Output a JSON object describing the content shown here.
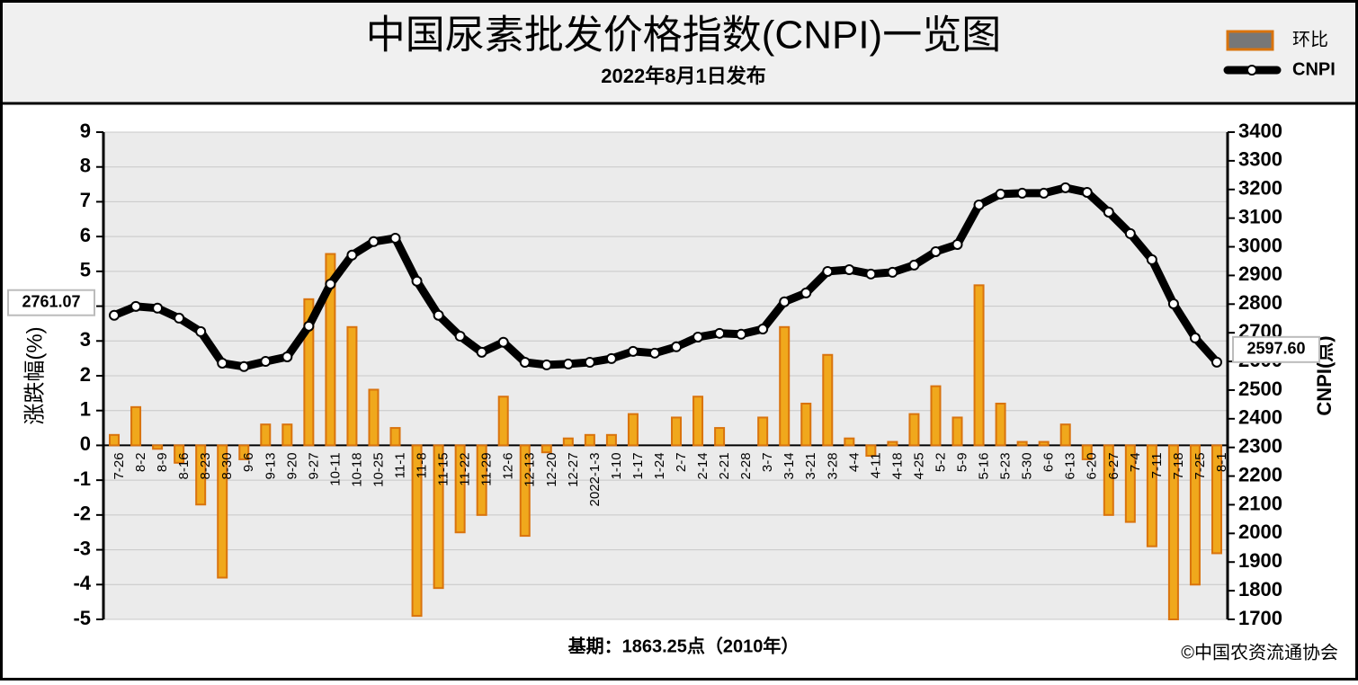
{
  "chart_data": {
    "type": "bar-line",
    "title": "中国尿素批发价格指数(CNPI)一览图",
    "subtitle": "2022年8月1日发布",
    "ylabel": "涨跌幅(%)",
    "y2label": "CNPI(点)",
    "note": "基期：1863.25点（2010年）",
    "source": "©中国农资流通协会",
    "categories": [
      "7-26",
      "8-2",
      "8-9",
      "8-16",
      "8-23",
      "8-30",
      "9-6",
      "9-13",
      "9-20",
      "9-27",
      "10-11",
      "10-18",
      "10-25",
      "11-1",
      "11-8",
      "11-15",
      "11-22",
      "11-29",
      "12-6",
      "12-13",
      "12-20",
      "12-27",
      "2022-1-3",
      "1-10",
      "1-17",
      "1-24",
      "2-7",
      "2-14",
      "2-21",
      "2-28",
      "3-7",
      "3-14",
      "3-21",
      "3-28",
      "4-4",
      "4-11",
      "4-18",
      "4-25",
      "5-2",
      "5-9",
      "5-16",
      "5-23",
      "5-30",
      "6-6",
      "6-13",
      "6-20",
      "6-27",
      "7-4",
      "7-11",
      "7-18",
      "7-25",
      "8-1"
    ],
    "series": [
      {
        "name": "环比",
        "type": "bar",
        "color": "#f0a81c",
        "stroke": "#d9730d",
        "values": [
          0.3,
          1.1,
          -0.1,
          -0.5,
          -1.7,
          -3.8,
          -0.4,
          0.6,
          0.6,
          4.2,
          5.5,
          3.4,
          1.6,
          0.5,
          -4.9,
          -4.1,
          -2.5,
          -2.0,
          1.4,
          -2.6,
          -0.2,
          0.2,
          0.3,
          0.3,
          0.9,
          0,
          0.8,
          1.4,
          0.5,
          0,
          0.8,
          3.4,
          1.2,
          2.6,
          0.2,
          -0.3,
          0.1,
          0.9,
          1.7,
          0.8,
          4.6,
          1.2,
          0.1,
          0.1,
          0.6,
          -0.4,
          -2.0,
          -2.2,
          -2.9,
          -5.0,
          -4.0,
          -3.1
        ]
      },
      {
        "name": "CNPI",
        "type": "line",
        "axis": "y2",
        "color": "#000000",
        "values": [
          2761.07,
          2792,
          2786,
          2751,
          2704,
          2594,
          2582,
          2600,
          2616,
          2723,
          2870,
          2971,
          3018,
          3030,
          2880,
          2761,
          2688,
          2632,
          2667,
          2597,
          2588,
          2591,
          2597,
          2610,
          2635,
          2629,
          2651,
          2685,
          2698,
          2695,
          2713,
          2808,
          2839,
          2914,
          2920,
          2905,
          2911,
          2936,
          2983,
          3008,
          3146,
          3184,
          3187,
          3187,
          3206,
          3190,
          3121,
          3046,
          2955,
          2801,
          2682,
          2597.6
        ],
        "value_labels": [
          "2761.07",
          null,
          null,
          null,
          null,
          null,
          null,
          null,
          null,
          null,
          null,
          null,
          null,
          null,
          null,
          null,
          null,
          null,
          null,
          null,
          null,
          null,
          null,
          null,
          null,
          null,
          null,
          null,
          null,
          null,
          null,
          null,
          null,
          null,
          null,
          null,
          null,
          null,
          null,
          null,
          null,
          null,
          null,
          null,
          null,
          null,
          null,
          null,
          null,
          null,
          null,
          "2597.60"
        ]
      }
    ],
    "ylim": [
      -5,
      9
    ],
    "yticks": [
      -5,
      -4,
      -3,
      -2,
      -1,
      0,
      1,
      2,
      3,
      4,
      5,
      6,
      7,
      8,
      9
    ],
    "y2lim": [
      1700,
      3400
    ],
    "y2ticks": [
      1700,
      1800,
      1900,
      2000,
      2100,
      2200,
      2300,
      2400,
      2500,
      2600,
      2700,
      2800,
      2900,
      3000,
      3100,
      3200,
      3300,
      3400
    ],
    "grid": true,
    "legend": "top-right"
  }
}
